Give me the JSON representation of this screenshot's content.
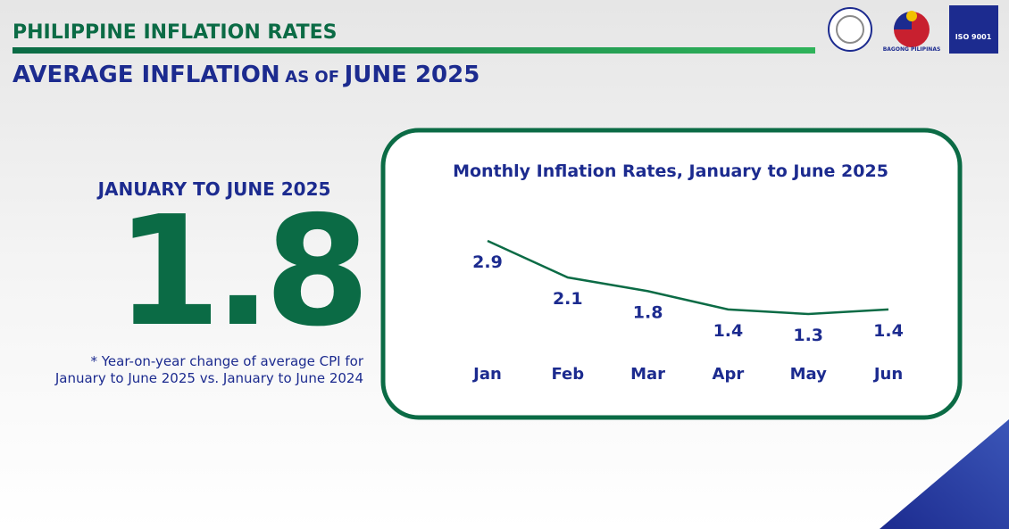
{
  "header": {
    "section": "PHILIPPINE INFLATION RATES",
    "title_parts": [
      "AVERAGE INFLATION",
      "AS OF",
      "JUNE 2025"
    ],
    "logos": [
      "BAGONG PILIPINAS",
      "ISO 9001"
    ]
  },
  "summary": {
    "period": "JANUARY TO JUNE 2025",
    "value": "1.8",
    "note": [
      "* Year-on-year change of average CPI for",
      "January to June 2025 vs. January to June 2024"
    ]
  },
  "chart_data": {
    "type": "line",
    "title": "Monthly Inflation Rates, January to June 2025",
    "categories": [
      "Jan",
      "Feb",
      "Mar",
      "Apr",
      "May",
      "Jun"
    ],
    "values": [
      2.9,
      2.1,
      1.8,
      1.4,
      1.3,
      1.4
    ],
    "color": "#0b6b45",
    "label_color": "#1c2b8f"
  }
}
